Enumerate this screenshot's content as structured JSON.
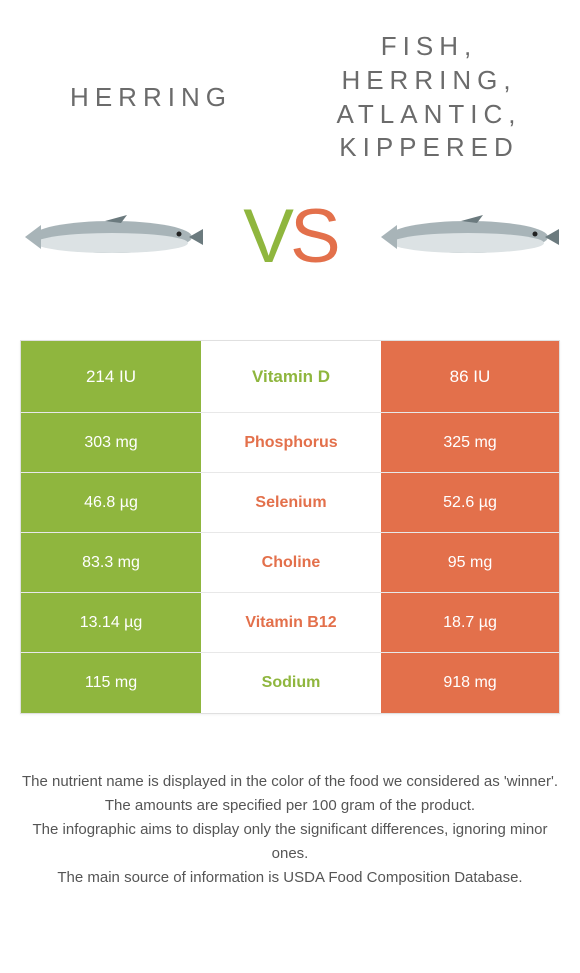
{
  "colors": {
    "left": "#8fb63e",
    "right": "#e3704b",
    "neutral_bg": "#ffffff",
    "neutral_text": "#999999",
    "body_bg": "#ffffff",
    "text": "#555555"
  },
  "header": {
    "left_title": "HERRING",
    "right_title": "FISH, HERRING, ATLANTIC, KIPPERED"
  },
  "vs": {
    "v": "V",
    "s": "S"
  },
  "comparison": {
    "type": "table",
    "columns": [
      "left_value",
      "nutrient",
      "right_value"
    ],
    "row_heights": {
      "first": 72,
      "rest": 60
    },
    "rows": [
      {
        "left": "214 IU",
        "label": "Vitamin D",
        "right": "86 IU",
        "winner": "left"
      },
      {
        "left": "303 mg",
        "label": "Phosphorus",
        "right": "325 mg",
        "winner": "right"
      },
      {
        "left": "46.8 µg",
        "label": "Selenium",
        "right": "52.6 µg",
        "winner": "right"
      },
      {
        "left": "83.3 mg",
        "label": "Choline",
        "right": "95 mg",
        "winner": "right"
      },
      {
        "left": "13.14 µg",
        "label": "Vitamin B12",
        "right": "18.7 µg",
        "winner": "right"
      },
      {
        "left": "115 mg",
        "label": "Sodium",
        "right": "918 mg",
        "winner": "left"
      }
    ]
  },
  "caption": {
    "line1": "The nutrient name is displayed in the color of the food we considered as 'winner'.",
    "line2": "The amounts are specified per 100 gram of the product.",
    "line3": "The infographic aims to display only the significant differences, ignoring minor ones.",
    "line4": "The main source of information is USDA Food Composition Database."
  },
  "fish_svg": {
    "body_fill": "#a8b4b8",
    "body_stroke": "#6b7a7e",
    "belly": "#dce2e4",
    "eye": "#222222"
  }
}
